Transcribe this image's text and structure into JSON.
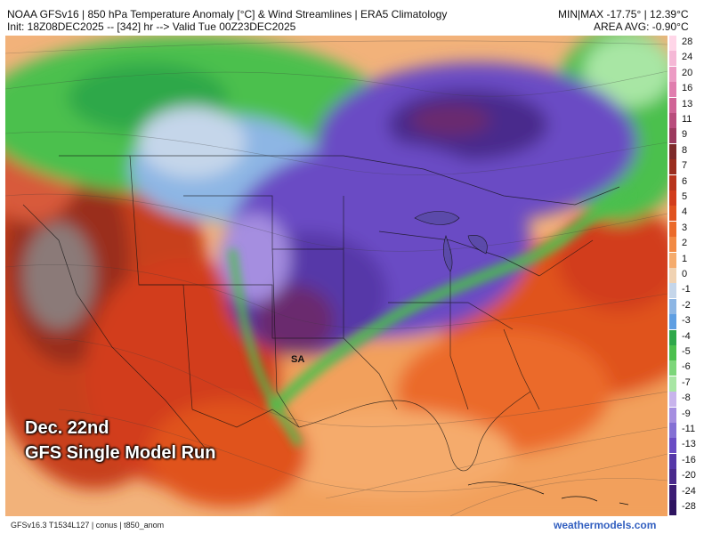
{
  "header": {
    "title": "NOAA GFSv16 | 850 hPa Temperature Anomaly [°C] & Wind Streamlines | ERA5 Climatology",
    "init": "Init: 18Z08DEC2025 -- [342] hr --> Valid Tue 00Z23DEC2025",
    "minmax": "MIN|MAX -17.75° | 12.39°C",
    "area_avg": "AREA AVG: -0.90°C"
  },
  "overlay": {
    "line1": "Dec. 22nd",
    "line2": "GFS Single Model Run"
  },
  "map_label": "SA",
  "footer": {
    "model_info": "GFSv16.3 T1534L127 | conus | t850_anom",
    "site": "weathermodels.com"
  },
  "colorbar": {
    "labels": [
      "28",
      "24",
      "20",
      "16",
      "13",
      "11",
      "9",
      "8",
      "7",
      "6",
      "5",
      "4",
      "3",
      "2",
      "1",
      "0",
      "-1",
      "-2",
      "-3",
      "-4",
      "-5",
      "-6",
      "-7",
      "-8",
      "-9",
      "-11",
      "-13",
      "-16",
      "-20",
      "-24",
      "-28"
    ],
    "colors": [
      "#ffd6e8",
      "#f5b8d6",
      "#ec9cc4",
      "#e07eae",
      "#d06496",
      "#b84d7c",
      "#9c3a5e",
      "#7d2a2a",
      "#9a2d1f",
      "#b8341c",
      "#d23d1c",
      "#e0521f",
      "#eb6a2a",
      "#f28a44",
      "#f5ab6c",
      "#f0d2b2",
      "#c5d6ea",
      "#8db6e4",
      "#5e9ee2",
      "#2ea84a",
      "#4cc04e",
      "#7cd67a",
      "#a8e6a4",
      "#c8b4ec",
      "#a58ee0",
      "#8470d4",
      "#6a4cc4",
      "#5638a8",
      "#4a2a8c",
      "#3c1c74",
      "#2e1460"
    ]
  },
  "map_legend_colors": {
    "ocean_gray": "#8a8a8a",
    "warm_dark_red": "#9a2d1f",
    "warm_red": "#c8401e",
    "warm_orange": "#eb6a2a",
    "light_orange": "#f5ab6c",
    "cold_blue": "#5e9ee2",
    "green": "#4cc04e",
    "purple": "#6a4cc4",
    "deep_purple": "#4a2a8c",
    "magenta_core": "#6a2a6e"
  }
}
